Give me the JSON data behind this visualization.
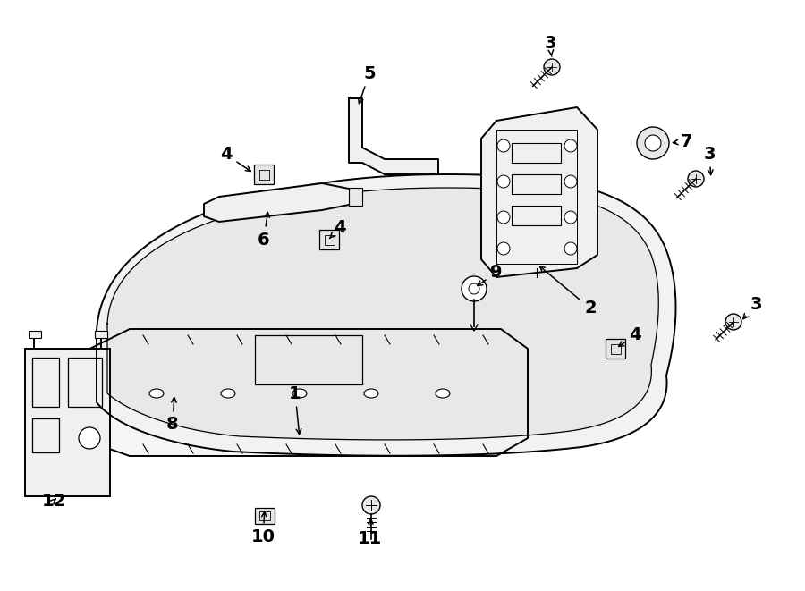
{
  "bg_color": "#ffffff",
  "line_color": "#000000",
  "lw_main": 1.4,
  "lw_thin": 0.9,
  "label_fontsize": 14,
  "figsize": [
    9.0,
    6.61
  ],
  "dpi": 100
}
